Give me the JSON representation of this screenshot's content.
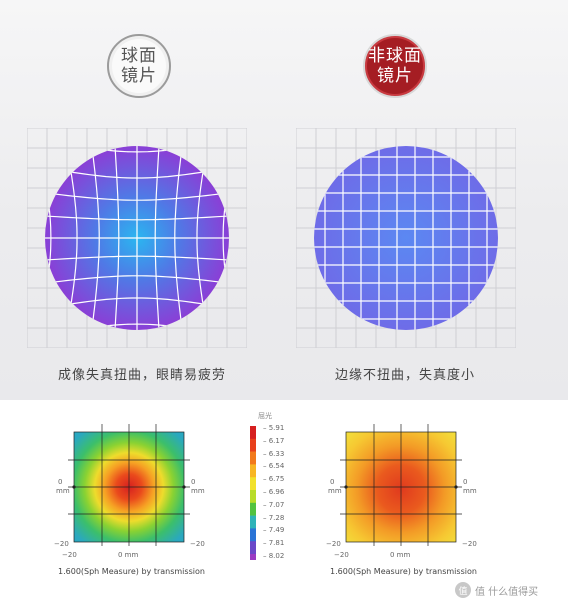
{
  "badges": {
    "spherical": [
      "球面",
      "镜片"
    ],
    "aspherical": [
      "非球面",
      "镜片"
    ]
  },
  "captions": {
    "left": "成像失真扭曲，眼睛易疲劳",
    "right": "边缘不扭曲，失真度小"
  },
  "plots": {
    "left": {
      "caption": "1.600(Sph Measure) by transmission",
      "y_ticks": [
        "0",
        "mm",
        "−20"
      ],
      "x_ticks": [
        "−20",
        "0 mm",
        "−20"
      ],
      "right_tick": [
        "0",
        "mm"
      ]
    },
    "right": {
      "caption": "1.600(Sph Measure) by transmission",
      "y_ticks": [
        "0",
        "mm",
        "−20"
      ],
      "x_ticks": [
        "−20",
        "0 mm",
        "−20"
      ],
      "right_tick": [
        "0",
        "mm"
      ]
    }
  },
  "legend": {
    "title": "屈光",
    "values": [
      "5.91",
      "6.17",
      "6.33",
      "6.54",
      "6.75",
      "6.96",
      "7.07",
      "7.28",
      "7.49",
      "7.81",
      "8.02"
    ],
    "colors": [
      "#d62020",
      "#e8401c",
      "#f27a1c",
      "#f8b624",
      "#f2e12c",
      "#b8dc2a",
      "#52c240",
      "#2fb3b8",
      "#2a74d6",
      "#6a48c8",
      "#9a3bc2"
    ]
  },
  "watermark": "值 什么值得买"
}
